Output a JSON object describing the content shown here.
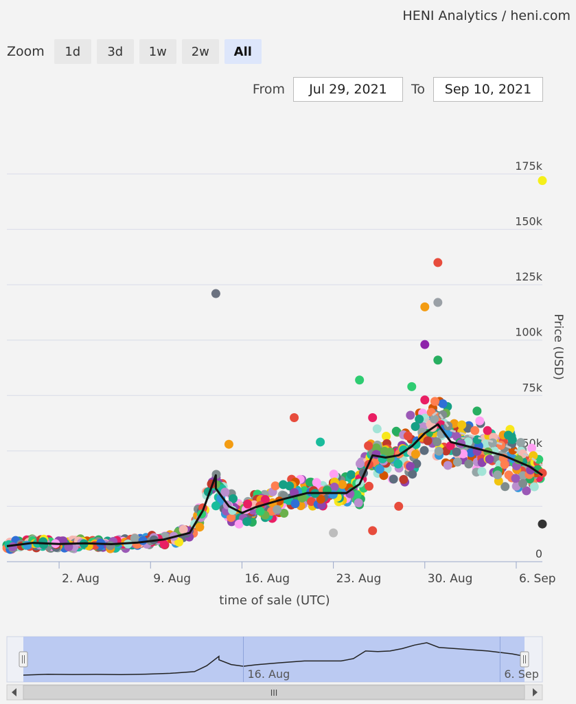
{
  "brand": {
    "text": "HENI Analytics / heni.com"
  },
  "zoom": {
    "label": "Zoom",
    "buttons": [
      {
        "label": "1d",
        "active": false
      },
      {
        "label": "3d",
        "active": false
      },
      {
        "label": "1w",
        "active": false
      },
      {
        "label": "2w",
        "active": false
      },
      {
        "label": "All",
        "active": true
      }
    ]
  },
  "range": {
    "from_label": "From",
    "from_value": "Jul 29, 2021",
    "to_label": "To",
    "to_value": "Sep 10, 2021"
  },
  "colors": {
    "grid": "#d8dbe8",
    "trend": "#111111",
    "navigator_fill": "#a9bdf0",
    "navigator_mask": "#6b86de"
  },
  "chart_data": {
    "type": "scatter",
    "title": "",
    "xlabel": "time of sale (UTC)",
    "ylabel": "Price (USD)",
    "x_range": [
      "2021-07-29",
      "2021-09-08"
    ],
    "ylim": [
      0,
      175000
    ],
    "y_ticks": [
      0,
      25000,
      50000,
      75000,
      100000,
      125000,
      150000,
      175000
    ],
    "y_tick_labels": [
      "0",
      "",
      "50k",
      "75k",
      "100k",
      "125k",
      "150k",
      "175k"
    ],
    "x_ticks": [
      "2021-08-02",
      "2021-08-09",
      "2021-08-16",
      "2021-08-23",
      "2021-08-30",
      "2021-09-06"
    ],
    "x_tick_labels": [
      "2. Aug",
      "9. Aug",
      "16. Aug",
      "23. Aug",
      "30. Aug",
      "6. Sep"
    ],
    "grid": true,
    "legend": "none",
    "navigator": {
      "labels": [
        "16. Aug",
        "6. Sep"
      ],
      "scroll_label": "III"
    },
    "highlight_points": [
      {
        "x": "2021-09-08",
        "y": 172000,
        "color": "#f5ef1a"
      },
      {
        "x": "2021-08-31",
        "y": 135000,
        "color": "#e74c3c"
      },
      {
        "x": "2021-08-14",
        "y": 121000,
        "color": "#6b7280"
      },
      {
        "x": "2021-08-31",
        "y": 117000,
        "color": "#9aa0a6"
      },
      {
        "x": "2021-08-30",
        "y": 115000,
        "color": "#f39c12"
      },
      {
        "x": "2021-08-30",
        "y": 98000,
        "color": "#8e24aa"
      },
      {
        "x": "2021-08-31",
        "y": 91000,
        "color": "#27ae60"
      },
      {
        "x": "2021-08-25",
        "y": 82000,
        "color": "#2ecc71"
      },
      {
        "x": "2021-08-29",
        "y": 79000,
        "color": "#2ecc71"
      },
      {
        "x": "2021-08-30",
        "y": 73000,
        "color": "#e91e63"
      },
      {
        "x": "2021-09-03",
        "y": 68000,
        "color": "#27ae60"
      },
      {
        "x": "2021-08-20",
        "y": 65000,
        "color": "#e74c3c"
      },
      {
        "x": "2021-08-22",
        "y": 54000,
        "color": "#1abc9c"
      },
      {
        "x": "2021-08-15",
        "y": 53000,
        "color": "#f39c12"
      },
      {
        "x": "2021-08-26",
        "y": 65000,
        "color": "#e91e63"
      },
      {
        "x": "2021-09-08",
        "y": 40000,
        "color": "#e74c3c"
      },
      {
        "x": "2021-09-08",
        "y": 17000,
        "color": "#333333"
      },
      {
        "x": "2021-08-23",
        "y": 13000,
        "color": "#bdbdbd"
      },
      {
        "x": "2021-08-26",
        "y": 14000,
        "color": "#e74c3c"
      },
      {
        "x": "2021-08-28",
        "y": 25000,
        "color": "#e74c3c"
      }
    ],
    "trend": {
      "x": [
        "2021-07-29",
        "2021-07-31",
        "2021-08-02",
        "2021-08-04",
        "2021-08-06",
        "2021-08-08",
        "2021-08-10",
        "2021-08-12",
        "2021-08-13",
        "2021-08-14",
        "2021-08-14",
        "2021-08-15",
        "2021-08-16",
        "2021-08-17",
        "2021-08-19",
        "2021-08-21",
        "2021-08-24",
        "2021-08-25",
        "2021-08-26",
        "2021-08-27",
        "2021-08-28",
        "2021-08-29",
        "2021-08-30",
        "2021-08-31",
        "2021-09-01",
        "2021-09-03",
        "2021-09-05",
        "2021-09-07",
        "2021-09-08"
      ],
      "y": [
        7000,
        8500,
        8000,
        8300,
        7900,
        8600,
        10000,
        13000,
        23000,
        39000,
        33000,
        25000,
        22000,
        24500,
        28000,
        31000,
        31000,
        35000,
        48000,
        47000,
        48000,
        52000,
        58000,
        62000,
        54000,
        51000,
        48000,
        43000,
        39000
      ]
    }
  }
}
